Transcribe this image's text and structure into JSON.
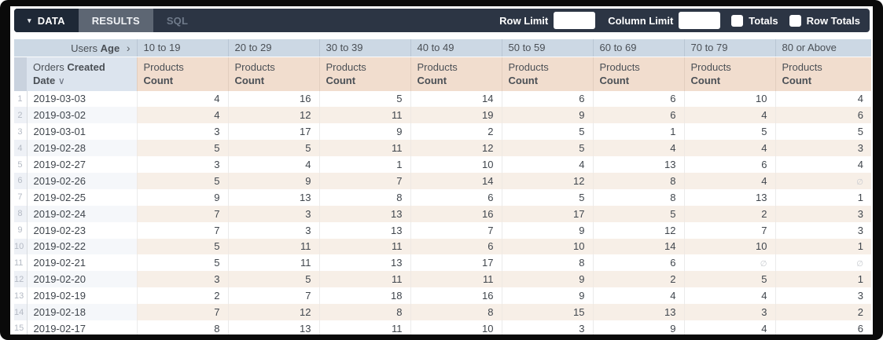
{
  "toolbar": {
    "tabs": [
      {
        "label": "DATA",
        "active": true
      },
      {
        "label": "RESULTS",
        "active": true
      },
      {
        "label": "SQL",
        "active": false
      }
    ],
    "row_limit_label": "Row Limit",
    "row_limit_value": "",
    "column_limit_label": "Column Limit",
    "column_limit_value": "",
    "totals_label": "Totals",
    "totals_checked": false,
    "row_totals_label": "Row Totals",
    "row_totals_checked": false
  },
  "table": {
    "pivot_field": {
      "view": "Users",
      "field": "Age"
    },
    "row_field": {
      "view": "Orders",
      "field": "Created Date",
      "sort": "desc"
    },
    "pivot_values": [
      "10 to 19",
      "20 to 29",
      "30 to 39",
      "40 to 49",
      "50 to 59",
      "60 to 69",
      "70 to 79",
      "80 or Above"
    ],
    "measure": {
      "view": "Products",
      "field": "Count"
    },
    "null_symbol": "∅",
    "rows": [
      {
        "num": 1,
        "date": "2019-03-03",
        "values": [
          4,
          16,
          5,
          14,
          6,
          6,
          10,
          4
        ]
      },
      {
        "num": 2,
        "date": "2019-03-02",
        "values": [
          4,
          12,
          11,
          19,
          9,
          6,
          4,
          6
        ]
      },
      {
        "num": 3,
        "date": "2019-03-01",
        "values": [
          3,
          17,
          9,
          2,
          5,
          1,
          5,
          5
        ]
      },
      {
        "num": 4,
        "date": "2019-02-28",
        "values": [
          5,
          5,
          11,
          12,
          5,
          4,
          4,
          3
        ]
      },
      {
        "num": 5,
        "date": "2019-02-27",
        "values": [
          3,
          4,
          1,
          10,
          4,
          13,
          6,
          4
        ]
      },
      {
        "num": 6,
        "date": "2019-02-26",
        "values": [
          5,
          9,
          7,
          14,
          12,
          8,
          4,
          null
        ]
      },
      {
        "num": 7,
        "date": "2019-02-25",
        "values": [
          9,
          13,
          8,
          6,
          5,
          8,
          13,
          1
        ]
      },
      {
        "num": 8,
        "date": "2019-02-24",
        "values": [
          7,
          3,
          13,
          16,
          17,
          5,
          2,
          3
        ]
      },
      {
        "num": 9,
        "date": "2019-02-23",
        "values": [
          7,
          3,
          13,
          7,
          9,
          12,
          7,
          3
        ]
      },
      {
        "num": 10,
        "date": "2019-02-22",
        "values": [
          5,
          11,
          11,
          6,
          10,
          14,
          10,
          1
        ]
      },
      {
        "num": 11,
        "date": "2019-02-21",
        "values": [
          5,
          11,
          13,
          17,
          8,
          6,
          null,
          null
        ]
      },
      {
        "num": 12,
        "date": "2019-02-20",
        "values": [
          3,
          5,
          11,
          11,
          9,
          2,
          5,
          1
        ]
      },
      {
        "num": 13,
        "date": "2019-02-19",
        "values": [
          2,
          7,
          18,
          16,
          9,
          4,
          4,
          3
        ]
      },
      {
        "num": 14,
        "date": "2019-02-18",
        "values": [
          7,
          12,
          8,
          8,
          15,
          13,
          3,
          2
        ]
      },
      {
        "num": 15,
        "date": "2019-02-17",
        "values": [
          8,
          13,
          11,
          10,
          3,
          9,
          4,
          6
        ]
      }
    ]
  },
  "colors": {
    "toolbar_bg": "#2c3544",
    "active_tab_bg": "#1e2836",
    "results_tab_bg": "#5d6673",
    "pivot_header_bg": "#ccd8e4",
    "dimension_header_bg": "#dce4ee",
    "measure_header_bg": "#f1ddce",
    "stripe_dimension": "#f5f7fa",
    "stripe_measure": "#f7efe7"
  }
}
